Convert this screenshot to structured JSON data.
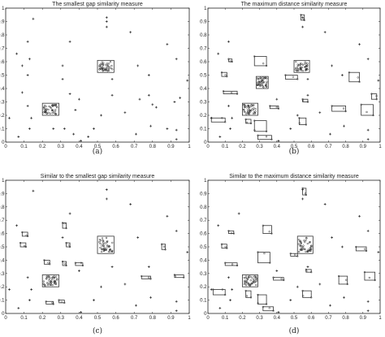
{
  "chart_data": [
    {
      "type": "scatter",
      "title": "The smallest gap similarity measure",
      "caption": "(a)",
      "xlim": [
        0,
        1
      ],
      "ylim": [
        0,
        1
      ],
      "xticks": [
        "0",
        "0.1",
        "0.2",
        "0.3",
        "0.4",
        "0.5",
        "0.6",
        "0.7",
        "0.8",
        "0.9",
        "1"
      ],
      "yticks": [
        "0",
        "0.1",
        "0.2",
        "0.3",
        "0.4",
        "0.5",
        "0.6",
        "0.7",
        "0.8",
        "0.9",
        "1"
      ],
      "grid": false,
      "points": [
        [
          0.15,
          0.92
        ],
        [
          0.55,
          0.93
        ],
        [
          0.55,
          0.9
        ],
        [
          0.55,
          0.86
        ],
        [
          0.68,
          0.82
        ],
        [
          0.12,
          0.75
        ],
        [
          0.35,
          0.75
        ],
        [
          0.88,
          0.73
        ],
        [
          0.06,
          0.66
        ],
        [
          0.13,
          0.62
        ],
        [
          0.09,
          0.57
        ],
        [
          0.31,
          0.57
        ],
        [
          0.72,
          0.57
        ],
        [
          0.93,
          0.62
        ],
        [
          0.12,
          0.5
        ],
        [
          0.31,
          0.47
        ],
        [
          0.58,
          0.47
        ],
        [
          0.78,
          0.5
        ],
        [
          0.99,
          0.46
        ],
        [
          0.09,
          0.37
        ],
        [
          0.35,
          0.36
        ],
        [
          0.4,
          0.32
        ],
        [
          0.12,
          0.27
        ],
        [
          0.58,
          0.35
        ],
        [
          0.73,
          0.32
        ],
        [
          0.78,
          0.35
        ],
        [
          0.95,
          0.33
        ],
        [
          0.92,
          0.3
        ],
        [
          0.8,
          0.28
        ],
        [
          0.82,
          0.26
        ],
        [
          0.38,
          0.24
        ],
        [
          0.02,
          0.18
        ],
        [
          0.14,
          0.18
        ],
        [
          0.52,
          0.2
        ],
        [
          0.65,
          0.22
        ],
        [
          0.13,
          0.1
        ],
        [
          0.26,
          0.1
        ],
        [
          0.32,
          0.1
        ],
        [
          0.48,
          0.1
        ],
        [
          0.79,
          0.12
        ],
        [
          0.88,
          0.1
        ],
        [
          0.93,
          0.09
        ],
        [
          0.37,
          0.06
        ],
        [
          0.45,
          0.04
        ],
        [
          0.07,
          0.04
        ],
        [
          0.41,
          0.01
        ],
        [
          0.71,
          0.06
        ],
        [
          0.93,
          0.02
        ]
      ],
      "boxes": [
        [
          0.2,
          0.29,
          0.2,
          0.29
        ],
        [
          0.5,
          0.59,
          0.52,
          0.61
        ]
      ]
    },
    {
      "type": "scatter",
      "title": "The maximum distance similarity measure",
      "caption": "(b)",
      "xlim": [
        0,
        1
      ],
      "ylim": [
        0,
        1
      ],
      "xticks": [
        "0",
        "0.1",
        "0.2",
        "0.3",
        "0.4",
        "0.5",
        "0.6",
        "0.7",
        "0.8",
        "0.9",
        "1"
      ],
      "yticks": [
        "0",
        "0.1",
        "0.2",
        "0.3",
        "0.4",
        "0.5",
        "0.6",
        "0.7",
        "0.8",
        "0.9",
        "1"
      ],
      "grid": false,
      "points": [
        [
          0.55,
          0.93
        ],
        [
          0.55,
          0.86
        ],
        [
          0.68,
          0.82
        ],
        [
          0.12,
          0.75
        ],
        [
          0.88,
          0.73
        ],
        [
          0.06,
          0.66
        ],
        [
          0.93,
          0.62
        ],
        [
          0.72,
          0.57
        ],
        [
          0.58,
          0.47
        ],
        [
          0.78,
          0.5
        ],
        [
          0.99,
          0.46
        ],
        [
          0.4,
          0.32
        ],
        [
          0.12,
          0.27
        ],
        [
          0.58,
          0.35
        ],
        [
          0.02,
          0.18
        ],
        [
          0.14,
          0.18
        ],
        [
          0.52,
          0.2
        ],
        [
          0.65,
          0.22
        ],
        [
          0.13,
          0.1
        ],
        [
          0.48,
          0.1
        ],
        [
          0.79,
          0.12
        ],
        [
          0.93,
          0.09
        ],
        [
          0.07,
          0.04
        ],
        [
          0.41,
          0.01
        ],
        [
          0.71,
          0.06
        ],
        [
          0.93,
          0.02
        ]
      ],
      "boxes": [
        [
          0.2,
          0.29,
          0.2,
          0.29
        ],
        [
          0.5,
          0.59,
          0.52,
          0.61
        ],
        [
          0.54,
          0.56,
          0.91,
          0.95
        ],
        [
          0.27,
          0.34,
          0.57,
          0.64
        ],
        [
          0.28,
          0.35,
          0.4,
          0.49
        ],
        [
          0.82,
          0.88,
          0.45,
          0.52
        ],
        [
          0.45,
          0.52,
          0.47,
          0.5
        ],
        [
          0.08,
          0.11,
          0.49,
          0.52
        ],
        [
          0.09,
          0.17,
          0.36,
          0.38
        ],
        [
          0.36,
          0.41,
          0.25,
          0.27
        ],
        [
          0.55,
          0.58,
          0.3,
          0.32
        ],
        [
          0.72,
          0.8,
          0.23,
          0.27
        ],
        [
          0.89,
          0.96,
          0.2,
          0.28
        ],
        [
          0.02,
          0.1,
          0.15,
          0.18
        ],
        [
          0.22,
          0.25,
          0.14,
          0.17
        ],
        [
          0.27,
          0.34,
          0.08,
          0.16
        ],
        [
          0.29,
          0.37,
          0.02,
          0.05
        ],
        [
          0.53,
          0.57,
          0.13,
          0.18
        ],
        [
          0.12,
          0.14,
          0.6,
          0.62
        ],
        [
          0.95,
          0.98,
          0.32,
          0.36
        ]
      ]
    },
    {
      "type": "scatter",
      "title": "Similar to the smallest gap similarity measure",
      "caption": "(c)",
      "xlim": [
        0,
        1
      ],
      "ylim": [
        0,
        1
      ],
      "xticks": [
        "0",
        "0.1",
        "0.2",
        "0.3",
        "0.4",
        "0.5",
        "0.6",
        "0.7",
        "0.8",
        "0.9",
        "1"
      ],
      "yticks": [
        "0",
        "0.1",
        "0.2",
        "0.3",
        "0.4",
        "0.5",
        "0.6",
        "0.7",
        "0.8",
        "0.9",
        "1"
      ],
      "grid": false,
      "points": [
        [
          0.15,
          0.92
        ],
        [
          0.55,
          0.93
        ],
        [
          0.55,
          0.86
        ],
        [
          0.68,
          0.82
        ],
        [
          0.35,
          0.75
        ],
        [
          0.88,
          0.73
        ],
        [
          0.06,
          0.66
        ],
        [
          0.93,
          0.62
        ],
        [
          0.31,
          0.57
        ],
        [
          0.72,
          0.57
        ],
        [
          0.58,
          0.47
        ],
        [
          0.99,
          0.46
        ],
        [
          0.4,
          0.32
        ],
        [
          0.12,
          0.27
        ],
        [
          0.58,
          0.35
        ],
        [
          0.78,
          0.35
        ],
        [
          0.02,
          0.18
        ],
        [
          0.14,
          0.18
        ],
        [
          0.52,
          0.2
        ],
        [
          0.65,
          0.22
        ],
        [
          0.13,
          0.1
        ],
        [
          0.48,
          0.1
        ],
        [
          0.79,
          0.12
        ],
        [
          0.93,
          0.09
        ],
        [
          0.07,
          0.04
        ],
        [
          0.41,
          0.01
        ],
        [
          0.71,
          0.06
        ],
        [
          0.93,
          0.02
        ]
      ],
      "boxes": [
        [
          0.2,
          0.29,
          0.2,
          0.29
        ],
        [
          0.5,
          0.59,
          0.45,
          0.58
        ],
        [
          0.09,
          0.12,
          0.58,
          0.61
        ],
        [
          0.08,
          0.11,
          0.5,
          0.53
        ],
        [
          0.31,
          0.33,
          0.64,
          0.68
        ],
        [
          0.33,
          0.35,
          0.5,
          0.53
        ],
        [
          0.85,
          0.87,
          0.48,
          0.52
        ],
        [
          0.21,
          0.24,
          0.37,
          0.4
        ],
        [
          0.31,
          0.33,
          0.36,
          0.39
        ],
        [
          0.74,
          0.79,
          0.26,
          0.28
        ],
        [
          0.92,
          0.97,
          0.27,
          0.29
        ],
        [
          0.22,
          0.26,
          0.07,
          0.09
        ],
        [
          0.29,
          0.32,
          0.08,
          0.1
        ],
        [
          0.38,
          0.42,
          0.36,
          0.38
        ]
      ]
    },
    {
      "type": "scatter",
      "title": "Similar to the maximum distance similarity measure",
      "caption": "(d)",
      "xlim": [
        0,
        1
      ],
      "ylim": [
        0,
        1
      ],
      "xticks": [
        "0",
        "0.1",
        "0.2",
        "0.3",
        "0.4",
        "0.5",
        "0.6",
        "0.7",
        "0.8",
        "0.9",
        "1"
      ],
      "yticks": [
        "0",
        "0.1",
        "0.2",
        "0.3",
        "0.4",
        "0.5",
        "0.6",
        "0.7",
        "0.8",
        "0.9",
        "1"
      ],
      "grid": false,
      "points": [
        [
          0.55,
          0.93
        ],
        [
          0.55,
          0.86
        ],
        [
          0.68,
          0.82
        ],
        [
          0.18,
          0.75
        ],
        [
          0.88,
          0.73
        ],
        [
          0.06,
          0.66
        ],
        [
          0.93,
          0.62
        ],
        [
          0.72,
          0.57
        ],
        [
          0.58,
          0.47
        ],
        [
          0.78,
          0.5
        ],
        [
          0.99,
          0.46
        ],
        [
          0.4,
          0.32
        ],
        [
          0.12,
          0.27
        ],
        [
          0.58,
          0.35
        ],
        [
          0.02,
          0.18
        ],
        [
          0.14,
          0.18
        ],
        [
          0.52,
          0.2
        ],
        [
          0.65,
          0.22
        ],
        [
          0.13,
          0.1
        ],
        [
          0.48,
          0.1
        ],
        [
          0.79,
          0.12
        ],
        [
          0.93,
          0.09
        ],
        [
          0.07,
          0.04
        ],
        [
          0.41,
          0.01
        ],
        [
          0.71,
          0.06
        ],
        [
          0.93,
          0.02
        ]
      ],
      "boxes": [
        [
          0.2,
          0.29,
          0.2,
          0.29
        ],
        [
          0.52,
          0.61,
          0.45,
          0.58
        ],
        [
          0.55,
          0.57,
          0.89,
          0.94
        ],
        [
          0.32,
          0.37,
          0.6,
          0.66
        ],
        [
          0.29,
          0.36,
          0.38,
          0.46
        ],
        [
          0.86,
          0.92,
          0.47,
          0.5
        ],
        [
          0.48,
          0.52,
          0.43,
          0.45
        ],
        [
          0.08,
          0.11,
          0.49,
          0.52
        ],
        [
          0.1,
          0.17,
          0.36,
          0.38
        ],
        [
          0.38,
          0.44,
          0.25,
          0.27
        ],
        [
          0.57,
          0.6,
          0.31,
          0.33
        ],
        [
          0.76,
          0.81,
          0.22,
          0.28
        ],
        [
          0.91,
          0.97,
          0.25,
          0.31
        ],
        [
          0.03,
          0.1,
          0.14,
          0.18
        ],
        [
          0.22,
          0.25,
          0.12,
          0.17
        ],
        [
          0.29,
          0.34,
          0.07,
          0.14
        ],
        [
          0.32,
          0.38,
          0.02,
          0.05
        ],
        [
          0.55,
          0.6,
          0.12,
          0.17
        ],
        [
          0.12,
          0.15,
          0.6,
          0.62
        ]
      ]
    }
  ]
}
